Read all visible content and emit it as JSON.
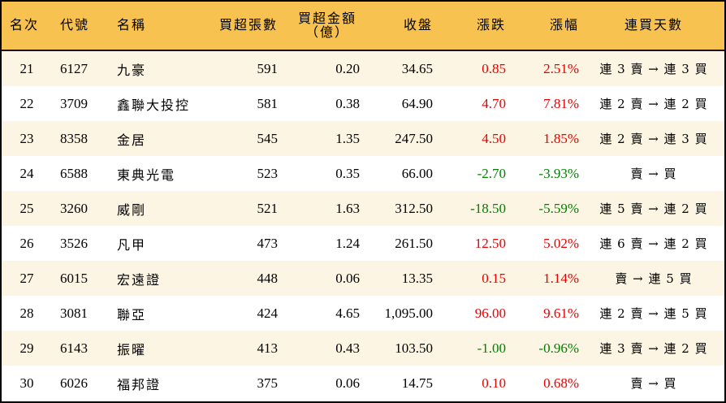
{
  "colors": {
    "header_bg": "#F8C251",
    "row_odd_bg": "#FDF5E3",
    "row_even_bg": "#FFFFFF",
    "up": "#E60000",
    "down": "#008000",
    "border": "#000000"
  },
  "header": {
    "rank": "名次",
    "code": "代號",
    "name": "名稱",
    "net_buy_lots": "買超張數",
    "net_buy_amount_line1": "買超金額",
    "net_buy_amount_line2": "（億）",
    "close": "收盤",
    "change": "漲跌",
    "change_pct": "漲幅",
    "streak": "連買天數"
  },
  "rows": [
    {
      "rank": "21",
      "code": "6127",
      "name": "九豪",
      "lots": "591",
      "amount": "0.20",
      "close": "34.65",
      "change": "0.85",
      "pct": "2.51%",
      "dir": "up",
      "streak": "連 3 賣 → 連 3 買"
    },
    {
      "rank": "22",
      "code": "3709",
      "name": "鑫聯大投控",
      "lots": "581",
      "amount": "0.38",
      "close": "64.90",
      "change": "4.70",
      "pct": "7.81%",
      "dir": "up",
      "streak": "連 2 賣 → 連 2 買"
    },
    {
      "rank": "23",
      "code": "8358",
      "name": "金居",
      "lots": "545",
      "amount": "1.35",
      "close": "247.50",
      "change": "4.50",
      "pct": "1.85%",
      "dir": "up",
      "streak": "連 2 賣 → 連 3 買"
    },
    {
      "rank": "24",
      "code": "6588",
      "name": "東典光電",
      "lots": "523",
      "amount": "0.35",
      "close": "66.00",
      "change": "-2.70",
      "pct": "-3.93%",
      "dir": "down",
      "streak": "賣 → 買"
    },
    {
      "rank": "25",
      "code": "3260",
      "name": "威剛",
      "lots": "521",
      "amount": "1.63",
      "close": "312.50",
      "change": "-18.50",
      "pct": "-5.59%",
      "dir": "down",
      "streak": "連 5 賣 → 連 2 買"
    },
    {
      "rank": "26",
      "code": "3526",
      "name": "凡甲",
      "lots": "473",
      "amount": "1.24",
      "close": "261.50",
      "change": "12.50",
      "pct": "5.02%",
      "dir": "up",
      "streak": "連 6 賣 → 連 2 買"
    },
    {
      "rank": "27",
      "code": "6015",
      "name": "宏遠證",
      "lots": "448",
      "amount": "0.06",
      "close": "13.35",
      "change": "0.15",
      "pct": "1.14%",
      "dir": "up",
      "streak": "賣 → 連 5 買"
    },
    {
      "rank": "28",
      "code": "3081",
      "name": "聯亞",
      "lots": "424",
      "amount": "4.65",
      "close": "1,095.00",
      "change": "96.00",
      "pct": "9.61%",
      "dir": "up",
      "streak": "連 2 賣 → 連 5 買"
    },
    {
      "rank": "29",
      "code": "6143",
      "name": "振曜",
      "lots": "413",
      "amount": "0.43",
      "close": "103.50",
      "change": "-1.00",
      "pct": "-0.96%",
      "dir": "down",
      "streak": "連 3 賣 → 連 2 買"
    },
    {
      "rank": "30",
      "code": "6026",
      "name": "福邦證",
      "lots": "375",
      "amount": "0.06",
      "close": "14.75",
      "change": "0.10",
      "pct": "0.68%",
      "dir": "up",
      "streak": "賣 → 買"
    }
  ]
}
